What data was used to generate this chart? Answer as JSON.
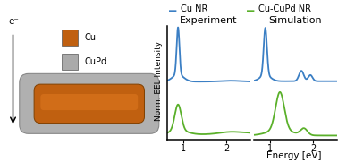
{
  "legend_labels": [
    "Cu NR",
    "Cu-CuPd NR"
  ],
  "legend_colors": [
    "#3b7fc4",
    "#5ab02a"
  ],
  "panel_titles": [
    "Experiment",
    "Simulation"
  ],
  "xlabel": "Energy [eV]",
  "ylabel": "Norm. EEL Intensity",
  "xticks": [
    1,
    2
  ],
  "xmin": 0.62,
  "xmax": 2.55,
  "bg_color": "#ffffff",
  "cu_color": "#c06010",
  "cupd_shell_color": "#b0b0b0",
  "cupd_shell_edge": "#888888",
  "cu_label": "Cu",
  "cupd_label": "CuPd",
  "electron_label": "e⁻"
}
